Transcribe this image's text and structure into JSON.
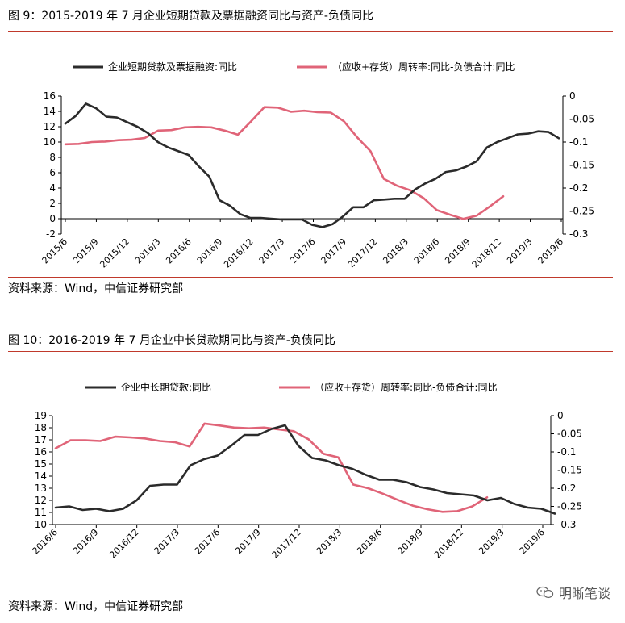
{
  "figure1": {
    "title": "图 9：2015-2019 年 7 月企业短期贷款及票据融资同比与资产-负债同比",
    "source": "资料来源：Wind，中信证券研究部"
  },
  "figure2": {
    "title": "图 10：2016-2019 年 7 月企业中长贷款期同比与资产-负债同比",
    "source": "资料来源：Wind，中信证券研究部"
  },
  "watermark": {
    "text": "明晰笔谈",
    "icon": "wechat-icon"
  },
  "colors": {
    "rule": "#c0392b",
    "black_series": "#2b2b2b",
    "pink_series": "#e06478"
  },
  "chart_data": [
    {
      "type": "line",
      "x_tick_labels": [
        "2015/6",
        "2015/9",
        "2015/12",
        "2016/3",
        "2016/6",
        "2016/9",
        "2016/12",
        "2017/3",
        "2017/6",
        "2017/9",
        "2017/12",
        "2018/3",
        "2018/6",
        "2018/9",
        "2018/12",
        "2019/3",
        "2019/6"
      ],
      "y_left_ticks": [
        "16",
        "14",
        "12",
        "10",
        "8",
        "6",
        "4",
        "2",
        "0",
        "-2"
      ],
      "y_right_ticks": [
        "0",
        "-0.05",
        "-0.1",
        "-0.15",
        "-0.2",
        "-0.25",
        "-0.3"
      ],
      "ylim_left": [
        -2,
        16
      ],
      "ylim_right": [
        -0.3,
        0
      ],
      "series": [
        {
          "name": "企业短期贷款及票据融资:同比",
          "axis": "left",
          "color": "#2b2b2b",
          "values": [
            12.4,
            13.4,
            15.0,
            14.4,
            13.3,
            13.2,
            12.6,
            12.0,
            11.2,
            10.0,
            9.3,
            8.8,
            8.3,
            6.8,
            5.5,
            2.4,
            1.7,
            0.6,
            0.1,
            0.1,
            0.0,
            -0.1,
            -0.1,
            -0.1,
            -0.8,
            -1.1,
            -0.7,
            0.3,
            1.5,
            1.5,
            2.4,
            2.5,
            2.6,
            2.6,
            3.8,
            4.6,
            5.2,
            6.1,
            6.3,
            6.8,
            7.5,
            9.3,
            10.0,
            10.5,
            11.0,
            11.1,
            11.4,
            11.3,
            10.5
          ]
        },
        {
          "name": "（应收+存货）周转率:同比-负债合计:同比",
          "axis": "right",
          "color": "#e06478",
          "values": [
            -0.105,
            -0.104,
            -0.1,
            -0.099,
            -0.096,
            -0.095,
            -0.091,
            -0.075,
            -0.074,
            -0.068,
            -0.067,
            -0.068,
            -0.075,
            -0.084,
            -0.055,
            -0.024,
            -0.025,
            -0.034,
            -0.032,
            -0.035,
            -0.036,
            -0.055,
            -0.09,
            -0.12,
            -0.18,
            -0.195,
            -0.205,
            -0.222,
            -0.248,
            -0.258,
            -0.267,
            -0.26,
            -0.24,
            -0.218
          ]
        }
      ]
    },
    {
      "type": "line",
      "x_tick_labels": [
        "2016/6",
        "2016/9",
        "2016/12",
        "2017/3",
        "2017/6",
        "2017/9",
        "2017/12",
        "2018/3",
        "2018/6",
        "2018/9",
        "2018/12",
        "2019/3",
        "2019/6"
      ],
      "y_left_ticks": [
        "19",
        "18",
        "17",
        "16",
        "15",
        "14",
        "13",
        "12",
        "11",
        "10"
      ],
      "y_right_ticks": [
        "0",
        "-0.05",
        "-0.1",
        "-0.15",
        "-0.2",
        "-0.25",
        "-0.3"
      ],
      "ylim_left": [
        10,
        19
      ],
      "ylim_right": [
        -0.3,
        0
      ],
      "series": [
        {
          "name": "企业中长期贷款:同比",
          "axis": "left",
          "color": "#2b2b2b",
          "values": [
            11.4,
            11.5,
            11.2,
            11.3,
            11.1,
            11.3,
            12.0,
            13.2,
            13.3,
            13.3,
            14.9,
            15.4,
            15.7,
            16.5,
            17.4,
            17.4,
            17.9,
            18.2,
            16.5,
            15.5,
            15.3,
            14.9,
            14.6,
            14.1,
            13.7,
            13.7,
            13.5,
            13.1,
            12.9,
            12.6,
            12.5,
            12.4,
            12.0,
            12.2,
            11.7,
            11.4,
            11.3,
            10.9
          ]
        },
        {
          "name": "（应收+存货）周转率:同比-负债合计:同比",
          "axis": "right",
          "color": "#e06478",
          "values": [
            -0.09,
            -0.068,
            -0.068,
            -0.07,
            -0.058,
            -0.06,
            -0.063,
            -0.07,
            -0.073,
            -0.085,
            -0.022,
            -0.027,
            -0.033,
            -0.035,
            -0.033,
            -0.038,
            -0.043,
            -0.065,
            -0.105,
            -0.115,
            -0.19,
            -0.2,
            -0.215,
            -0.232,
            -0.248,
            -0.258,
            -0.265,
            -0.263,
            -0.25,
            -0.225
          ]
        }
      ]
    }
  ]
}
